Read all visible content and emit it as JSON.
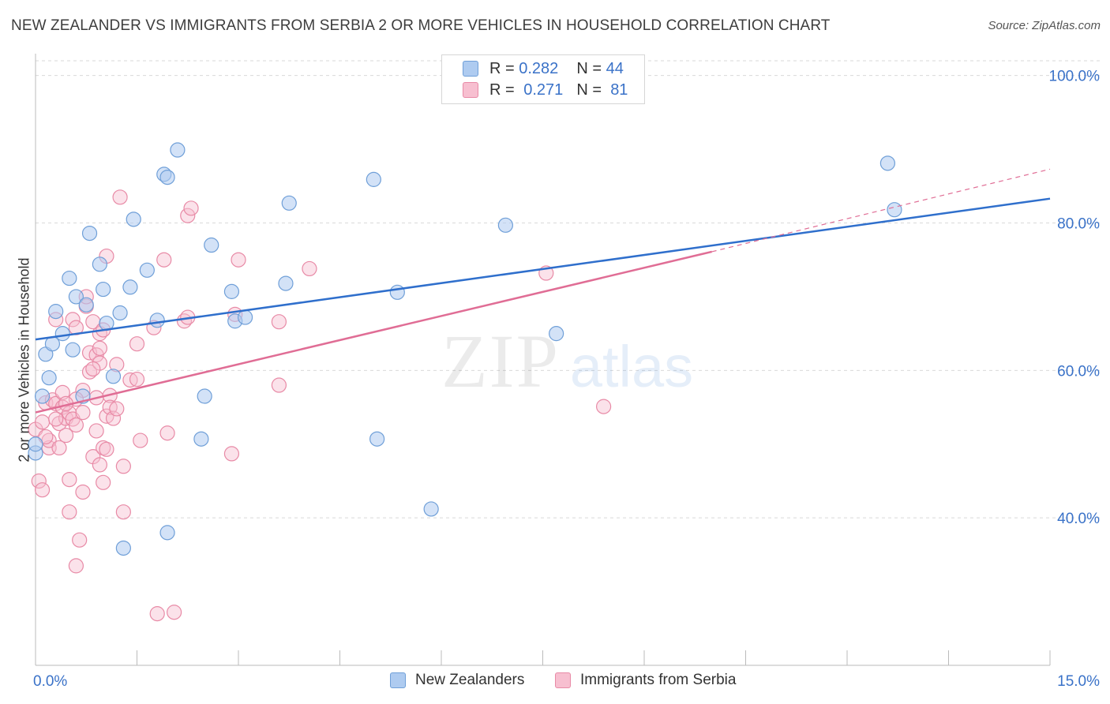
{
  "title": "NEW ZEALANDER VS IMMIGRANTS FROM SERBIA 2 OR MORE VEHICLES IN HOUSEHOLD CORRELATION CHART",
  "source": "Source: ZipAtlas.com",
  "watermark": {
    "zip": "ZIP",
    "atlas": "atlas"
  },
  "legend": {
    "rows": [
      {
        "r_label": "R =",
        "r_value": "0.282",
        "n_label": "N =",
        "n_value": "44"
      },
      {
        "r_label": "R =",
        "r_value": "0.271",
        "n_label": "N =",
        "n_value": "81"
      }
    ]
  },
  "colors": {
    "blue_fill": "#aecbf0",
    "blue_stroke": "#6f9fd8",
    "blue_line": "#2f6fcc",
    "pink_fill": "#f7bfd0",
    "pink_stroke": "#e88aa6",
    "pink_line": "#e06d95",
    "grid": "#d9d9d9",
    "tick_label": "#3a72c8"
  },
  "chart_data": {
    "type": "scatter",
    "title": "NEW ZEALANDER VS IMMIGRANTS FROM SERBIA 2 OR MORE VEHICLES IN HOUSEHOLD CORRELATION CHART",
    "xlabel": "",
    "ylabel": "2 or more Vehicles in Household",
    "xlim": [
      0,
      15
    ],
    "ylim": [
      20,
      102
    ],
    "x_tick_labels": [
      "0.0%",
      "15.0%"
    ],
    "y_ticks": [
      40,
      60,
      80,
      100
    ],
    "y_tick_labels": [
      "40.0%",
      "60.0%",
      "80.0%",
      "100.0%"
    ],
    "grid": "horizontal dashed",
    "legend_position": "top-center",
    "series": [
      {
        "name": "New Zealanders",
        "color": "#6f9fd8",
        "points": [
          [
            0.0,
            48.8
          ],
          [
            0.1,
            56.5
          ],
          [
            0.15,
            62.2
          ],
          [
            0.2,
            59.0
          ],
          [
            0.25,
            63.6
          ],
          [
            0.3,
            68.0
          ],
          [
            0.4,
            65.0
          ],
          [
            0.5,
            72.5
          ],
          [
            0.55,
            62.8
          ],
          [
            0.6,
            70.0
          ],
          [
            0.7,
            56.5
          ],
          [
            0.75,
            68.9
          ],
          [
            0.8,
            78.6
          ],
          [
            0.95,
            74.4
          ],
          [
            1.0,
            71.0
          ],
          [
            1.05,
            66.4
          ],
          [
            1.15,
            59.2
          ],
          [
            1.25,
            67.8
          ],
          [
            1.3,
            35.9
          ],
          [
            1.4,
            71.3
          ],
          [
            1.45,
            80.5
          ],
          [
            1.65,
            73.6
          ],
          [
            1.8,
            66.8
          ],
          [
            1.9,
            86.6
          ],
          [
            1.95,
            86.2
          ],
          [
            1.95,
            38.0
          ],
          [
            2.1,
            89.9
          ],
          [
            2.45,
            50.7
          ],
          [
            2.5,
            56.5
          ],
          [
            2.6,
            77.0
          ],
          [
            2.9,
            70.7
          ],
          [
            2.95,
            66.7
          ],
          [
            3.1,
            67.2
          ],
          [
            3.7,
            71.8
          ],
          [
            3.75,
            82.7
          ],
          [
            5.0,
            85.9
          ],
          [
            5.05,
            50.7
          ],
          [
            5.35,
            70.6
          ],
          [
            5.85,
            41.2
          ],
          [
            6.95,
            79.7
          ],
          [
            7.7,
            65.0
          ],
          [
            12.6,
            88.1
          ],
          [
            12.7,
            81.8
          ],
          [
            0.0,
            50.0
          ]
        ],
        "trend_line": {
          "x": [
            0,
            15
          ],
          "y": [
            64.2,
            83.3
          ]
        }
      },
      {
        "name": "Immigrants from Serbia",
        "color": "#e88aa6",
        "points": [
          [
            0.0,
            52.0
          ],
          [
            0.05,
            45.0
          ],
          [
            0.1,
            53.0
          ],
          [
            0.1,
            43.8
          ],
          [
            0.15,
            55.6
          ],
          [
            0.2,
            49.5
          ],
          [
            0.2,
            50.5
          ],
          [
            0.25,
            56.0
          ],
          [
            0.3,
            55.5
          ],
          [
            0.3,
            66.9
          ],
          [
            0.35,
            52.8
          ],
          [
            0.4,
            55.0
          ],
          [
            0.4,
            57.0
          ],
          [
            0.45,
            51.2
          ],
          [
            0.45,
            53.5
          ],
          [
            0.5,
            54.2
          ],
          [
            0.5,
            40.8
          ],
          [
            0.5,
            45.2
          ],
          [
            0.55,
            53.4
          ],
          [
            0.55,
            66.9
          ],
          [
            0.6,
            65.8
          ],
          [
            0.6,
            52.6
          ],
          [
            0.6,
            33.5
          ],
          [
            0.65,
            37.0
          ],
          [
            0.7,
            54.3
          ],
          [
            0.7,
            57.3
          ],
          [
            0.75,
            68.7
          ],
          [
            0.75,
            70.0
          ],
          [
            0.7,
            43.5
          ],
          [
            0.8,
            59.8
          ],
          [
            0.8,
            62.4
          ],
          [
            0.85,
            66.6
          ],
          [
            0.85,
            48.3
          ],
          [
            0.9,
            62.1
          ],
          [
            0.9,
            56.3
          ],
          [
            0.9,
            51.8
          ],
          [
            0.95,
            61.0
          ],
          [
            0.95,
            63.0
          ],
          [
            0.95,
            65.0
          ],
          [
            1.0,
            65.5
          ],
          [
            0.95,
            47.2
          ],
          [
            1.0,
            49.5
          ],
          [
            1.0,
            44.8
          ],
          [
            1.05,
            75.5
          ],
          [
            1.05,
            53.8
          ],
          [
            1.1,
            56.6
          ],
          [
            1.1,
            55.0
          ],
          [
            1.15,
            53.5
          ],
          [
            1.2,
            54.8
          ],
          [
            1.2,
            60.8
          ],
          [
            1.25,
            83.5
          ],
          [
            1.3,
            47.0
          ],
          [
            1.3,
            40.8
          ],
          [
            1.4,
            58.7
          ],
          [
            1.5,
            58.8
          ],
          [
            1.5,
            63.6
          ],
          [
            1.55,
            50.5
          ],
          [
            1.75,
            65.8
          ],
          [
            1.8,
            27.0
          ],
          [
            1.9,
            75.0
          ],
          [
            1.95,
            51.5
          ],
          [
            2.05,
            27.2
          ],
          [
            2.2,
            66.7
          ],
          [
            2.25,
            81.0
          ],
          [
            2.25,
            67.2
          ],
          [
            2.3,
            82.0
          ],
          [
            2.9,
            48.7
          ],
          [
            2.95,
            67.6
          ],
          [
            3.0,
            75.0
          ],
          [
            3.6,
            66.6
          ],
          [
            3.6,
            58.0
          ],
          [
            4.05,
            73.8
          ],
          [
            7.55,
            73.2
          ],
          [
            8.4,
            55.1
          ],
          [
            0.35,
            49.5
          ],
          [
            0.6,
            56.1
          ],
          [
            0.85,
            60.2
          ],
          [
            1.05,
            49.3
          ],
          [
            0.15,
            51.0
          ],
          [
            0.3,
            53.4
          ],
          [
            0.45,
            55.5
          ]
        ],
        "trend_line": {
          "x": [
            0,
            10
          ],
          "y": [
            54.3,
            76.1
          ],
          "dashed_extension": {
            "x": [
              10,
              15
            ],
            "y": [
              76.1,
              87.3
            ]
          }
        }
      }
    ]
  },
  "bottom_legend": [
    {
      "label": "New Zealanders"
    },
    {
      "label": "Immigrants from Serbia"
    }
  ]
}
